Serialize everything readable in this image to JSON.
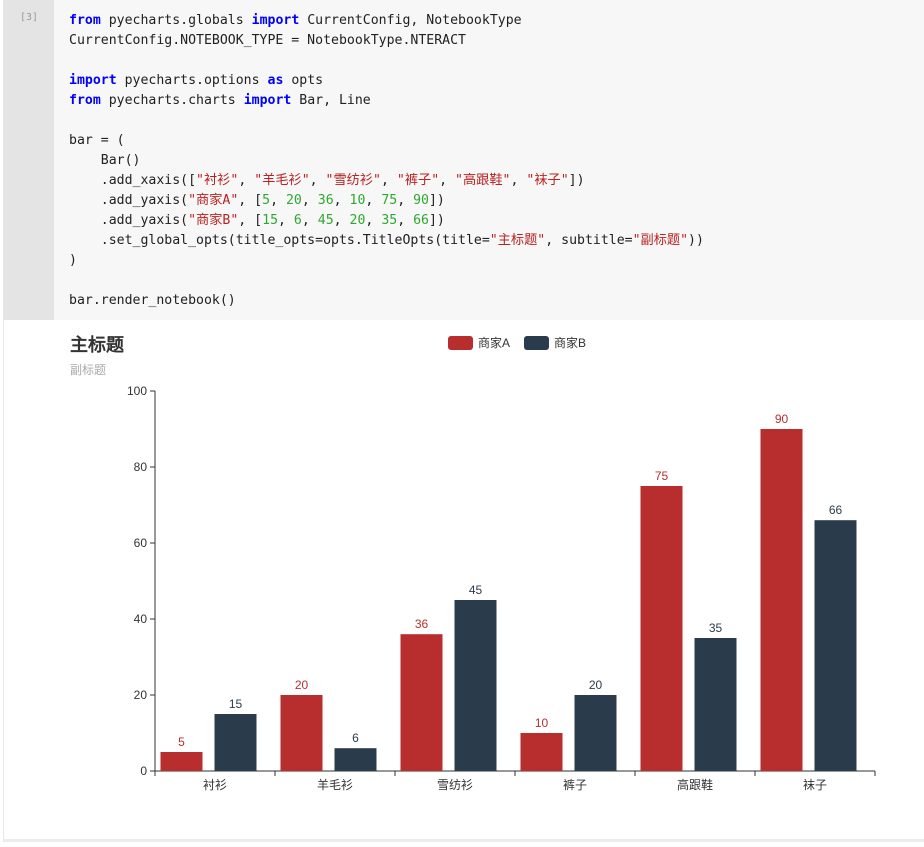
{
  "cell": {
    "prompt": "[3]",
    "code_lines": [
      [
        [
          "kw",
          "from"
        ],
        [
          "t",
          " pyecharts.globals "
        ],
        [
          "kw",
          "import"
        ],
        [
          "t",
          " CurrentConfig, NotebookType"
        ]
      ],
      [
        [
          "t",
          "CurrentConfig.NOTEBOOK_TYPE = NotebookType.NTERACT"
        ]
      ],
      [
        [
          "t",
          ""
        ]
      ],
      [
        [
          "kw",
          "import"
        ],
        [
          "t",
          " pyecharts.options "
        ],
        [
          "kw",
          "as"
        ],
        [
          "t",
          " opts"
        ]
      ],
      [
        [
          "kw",
          "from"
        ],
        [
          "t",
          " pyecharts.charts "
        ],
        [
          "kw",
          "import"
        ],
        [
          "t",
          " Bar, Line"
        ]
      ],
      [
        [
          "t",
          ""
        ]
      ],
      [
        [
          "t",
          "bar = ("
        ]
      ],
      [
        [
          "t",
          "    Bar()"
        ]
      ],
      [
        [
          "t",
          "    .add_xaxis(["
        ],
        [
          "str",
          "\"衬衫\""
        ],
        [
          "t",
          ", "
        ],
        [
          "str",
          "\"羊毛衫\""
        ],
        [
          "t",
          ", "
        ],
        [
          "str",
          "\"雪纺衫\""
        ],
        [
          "t",
          ", "
        ],
        [
          "str",
          "\"裤子\""
        ],
        [
          "t",
          ", "
        ],
        [
          "str",
          "\"高跟鞋\""
        ],
        [
          "t",
          ", "
        ],
        [
          "str",
          "\"袜子\""
        ],
        [
          "t",
          "])"
        ]
      ],
      [
        [
          "t",
          "    .add_yaxis("
        ],
        [
          "str",
          "\"商家A\""
        ],
        [
          "t",
          ", ["
        ],
        [
          "num",
          "5"
        ],
        [
          "t",
          ", "
        ],
        [
          "num",
          "20"
        ],
        [
          "t",
          ", "
        ],
        [
          "num",
          "36"
        ],
        [
          "t",
          ", "
        ],
        [
          "num",
          "10"
        ],
        [
          "t",
          ", "
        ],
        [
          "num",
          "75"
        ],
        [
          "t",
          ", "
        ],
        [
          "num",
          "90"
        ],
        [
          "t",
          "])"
        ]
      ],
      [
        [
          "t",
          "    .add_yaxis("
        ],
        [
          "str",
          "\"商家B\""
        ],
        [
          "t",
          ", ["
        ],
        [
          "num",
          "15"
        ],
        [
          "t",
          ", "
        ],
        [
          "num",
          "6"
        ],
        [
          "t",
          ", "
        ],
        [
          "num",
          "45"
        ],
        [
          "t",
          ", "
        ],
        [
          "num",
          "20"
        ],
        [
          "t",
          ", "
        ],
        [
          "num",
          "35"
        ],
        [
          "t",
          ", "
        ],
        [
          "num",
          "66"
        ],
        [
          "t",
          "])"
        ]
      ],
      [
        [
          "t",
          "    .set_global_opts(title_opts=opts.TitleOpts(title="
        ],
        [
          "str",
          "\"主标题\""
        ],
        [
          "t",
          ", subtitle="
        ],
        [
          "str",
          "\"副标题\""
        ],
        [
          "t",
          "))"
        ]
      ],
      [
        [
          "t",
          ")"
        ]
      ],
      [
        [
          "t",
          ""
        ]
      ],
      [
        [
          "t",
          "bar.render_notebook()"
        ]
      ]
    ]
  },
  "chart_data": {
    "type": "bar",
    "title": "主标题",
    "subtitle": "副标题",
    "categories": [
      "衬衫",
      "羊毛衫",
      "雪纺衫",
      "裤子",
      "高跟鞋",
      "袜子"
    ],
    "series": [
      {
        "name": "商家A",
        "values": [
          5,
          20,
          36,
          10,
          75,
          90
        ],
        "color": "#b82e2e"
      },
      {
        "name": "商家B",
        "values": [
          15,
          6,
          45,
          20,
          35,
          66
        ],
        "color": "#2a3c4b"
      }
    ],
    "xlabel": "",
    "ylabel": "",
    "ylim": [
      0,
      100
    ],
    "yticks": [
      0,
      20,
      40,
      60,
      80,
      100
    ],
    "grid": false,
    "legend_position": "top-center",
    "data_labels": true
  }
}
